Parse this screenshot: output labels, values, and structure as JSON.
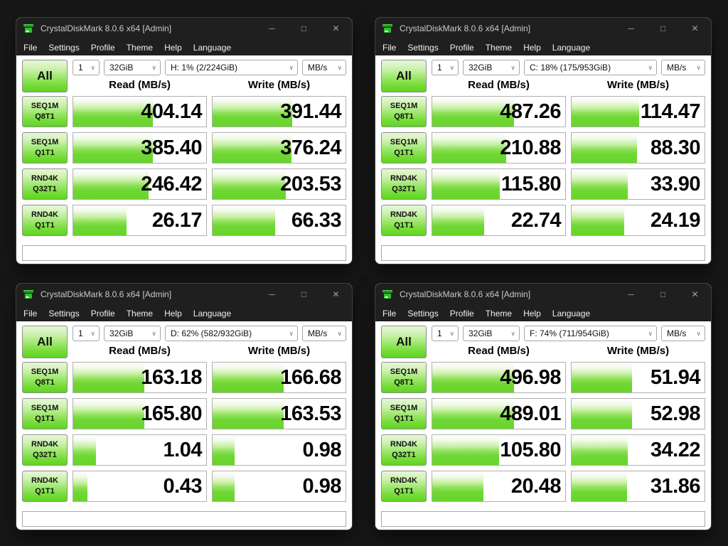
{
  "app": {
    "title": "CrystalDiskMark 8.0.6 x64 [Admin]",
    "menu": [
      "File",
      "Settings",
      "Profile",
      "Theme",
      "Help",
      "Language"
    ],
    "window_buttons": {
      "minimize": "─",
      "maximize": "□",
      "close": "✕"
    }
  },
  "controls": {
    "all_label": "All",
    "count_value": "1",
    "size_value": "32GiB",
    "unit_value": "MB/s",
    "chevron": "∨"
  },
  "headers": {
    "read": "Read (MB/s)",
    "write": "Write (MB/s)"
  },
  "tests": [
    {
      "line1": "SEQ1M",
      "line2": "Q8T1"
    },
    {
      "line1": "SEQ1M",
      "line2": "Q1T1"
    },
    {
      "line1": "RND4K",
      "line2": "Q32T1"
    },
    {
      "line1": "RND4K",
      "line2": "Q1T1"
    }
  ],
  "bar_scale": {
    "type": "log10",
    "min": 0.1,
    "max": 100000
  },
  "colors": {
    "accent_green": "#67d42a",
    "desktop_bg": "#171717",
    "chrome_bg": "#1f1f1f",
    "cell_border": "#b0b0b0"
  },
  "windows": [
    {
      "position": "top-left",
      "drive": "H: 1% (2/224GiB)",
      "read": [
        "404.14",
        "385.40",
        "246.42",
        "26.17"
      ],
      "write": [
        "391.44",
        "376.24",
        "203.53",
        "66.33"
      ]
    },
    {
      "position": "top-right",
      "drive": "C: 18% (175/953GiB)",
      "read": [
        "487.26",
        "210.88",
        "115.80",
        "22.74"
      ],
      "write": [
        "114.47",
        "88.30",
        "33.90",
        "24.19"
      ]
    },
    {
      "position": "bottom-left",
      "drive": "D: 62% (582/932GiB)",
      "read": [
        "163.18",
        "165.80",
        "1.04",
        "0.43"
      ],
      "write": [
        "166.68",
        "163.53",
        "0.98",
        "0.98"
      ]
    },
    {
      "position": "bottom-right",
      "drive": "F: 74% (711/954GiB)",
      "read": [
        "496.98",
        "489.01",
        "105.80",
        "20.48"
      ],
      "write": [
        "51.94",
        "52.98",
        "34.22",
        "31.86"
      ]
    }
  ]
}
